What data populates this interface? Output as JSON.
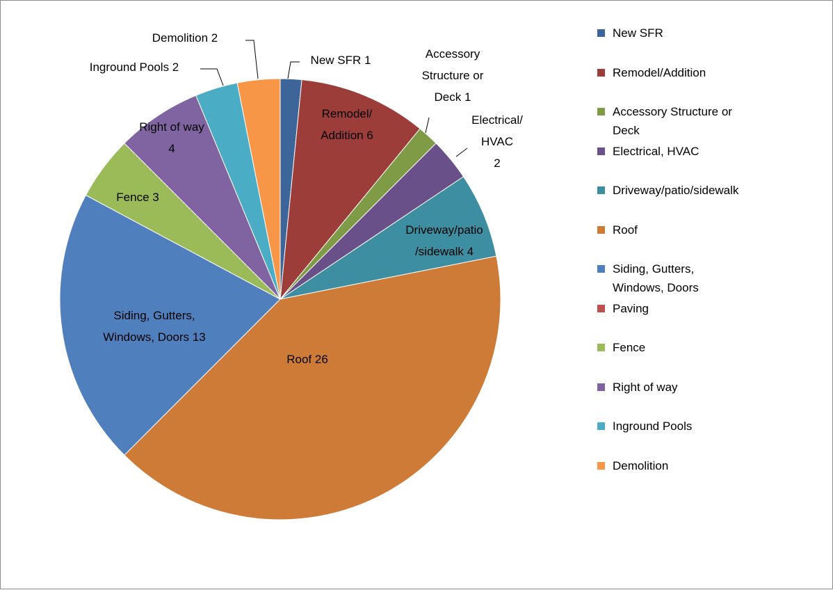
{
  "chart_data": {
    "type": "pie",
    "categories": [
      "New SFR",
      "Remodel/Addition",
      "Accessory Structure or Deck",
      "Electrical, HVAC",
      "Driveway/patio/sidewalk",
      "Roof",
      "Siding, Gutters, Windows, Doors",
      "Paving",
      "Fence",
      "Right of way",
      "Inground Pools",
      "Demolition"
    ],
    "values": [
      1,
      6,
      1,
      2,
      4,
      26,
      13,
      0,
      3,
      4,
      2,
      2
    ],
    "value_labels": [
      "New SFR 1",
      "Remodel/\nAddition 6",
      "Accessory\nStructure or\nDeck 1",
      "Electrical/\nHVAC\n2",
      "Driveway/patio\n/sidewalk 4",
      "Roof 26",
      "Siding, Gutters,\nWindows, Doors 13",
      null,
      "Fence 3",
      "Right of way\n4",
      "Inground Pools 2",
      "Demolition 2"
    ],
    "colors": [
      "#3d659a",
      "#9d3d3a",
      "#7f9b45",
      "#6a5088",
      "#3e8ea1",
      "#ce7b38",
      "#4f7fbc",
      "#c0504d",
      "#9bbb59",
      "#8064a2",
      "#4bacc6",
      "#f79646"
    ],
    "legend": "right"
  }
}
